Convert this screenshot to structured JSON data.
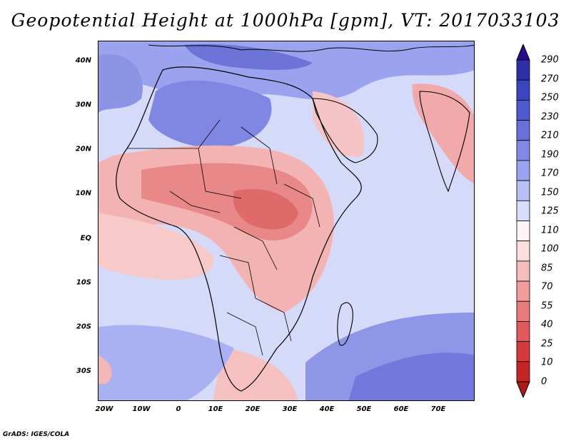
{
  "title": "Geopotential Height at 1000hPa [gpm], VT: 2017033103",
  "footer": "GrADS: IGES/COLA",
  "map": {
    "lat_labels": [
      "40N",
      "30N",
      "20N",
      "10N",
      "EQ",
      "10S",
      "20S",
      "30S"
    ],
    "lon_labels": [
      "20W",
      "10W",
      "0",
      "10E",
      "20E",
      "30E",
      "40E",
      "50E",
      "60E",
      "70E"
    ]
  },
  "colorbar": {
    "levels": [
      "290",
      "270",
      "250",
      "230",
      "210",
      "190",
      "170",
      "150",
      "125",
      "110",
      "100",
      "85",
      "70",
      "55",
      "40",
      "25",
      "10",
      "0"
    ],
    "colors": [
      "#2a0a8e",
      "#2d2fa8",
      "#3b45bf",
      "#4f5ad0",
      "#6870dc",
      "#8089e6",
      "#9aa3ef",
      "#b8c0f6",
      "#d8ddfb",
      "#fdf5f5",
      "#fbdede",
      "#f7bdbd",
      "#f29c9c",
      "#ea7b7b",
      "#e05a5a",
      "#d43a3a",
      "#c42424",
      "#b01818"
    ]
  },
  "colors": {
    "ocean_mid": "#cfd5f7",
    "north_blue": "#7f87e2",
    "south_blue": "#8e96e8",
    "warm": "#f2a6a6",
    "hot": "#e57b7b",
    "border": "#000000"
  }
}
